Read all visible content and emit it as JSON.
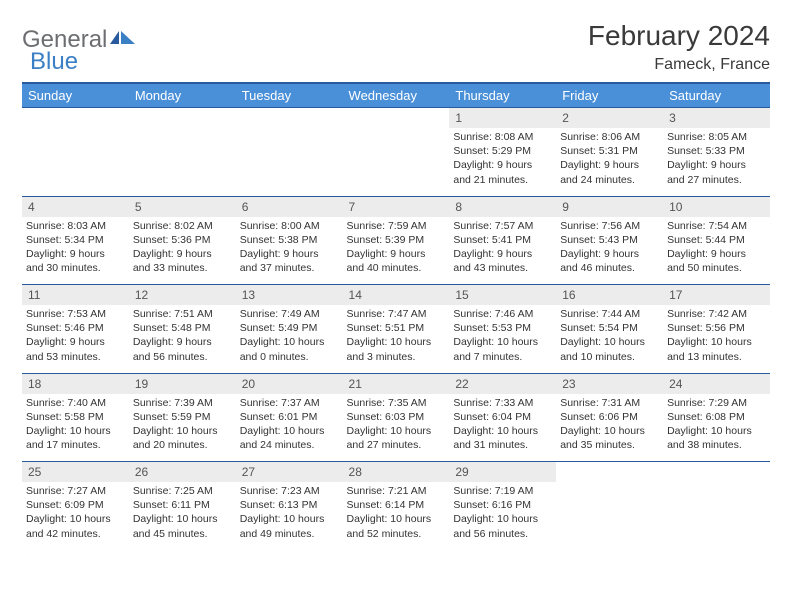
{
  "logo": {
    "text1": "General",
    "text2": "Blue"
  },
  "title": "February 2024",
  "location": "Fameck, France",
  "dayHeaders": [
    "Sunday",
    "Monday",
    "Tuesday",
    "Wednesday",
    "Thursday",
    "Friday",
    "Saturday"
  ],
  "colors": {
    "headerBg": "#4a90d9",
    "headerBorder": "#2a5a9e",
    "dayBg": "#ececec",
    "text": "#333333",
    "titleText": "#3a3a3a",
    "logoGray": "#6d6e71",
    "logoBlue": "#3b7fc4"
  },
  "weeks": [
    [
      null,
      null,
      null,
      null,
      {
        "n": "1",
        "sr": "8:08 AM",
        "ss": "5:29 PM",
        "d": "9 hours and 21 minutes."
      },
      {
        "n": "2",
        "sr": "8:06 AM",
        "ss": "5:31 PM",
        "d": "9 hours and 24 minutes."
      },
      {
        "n": "3",
        "sr": "8:05 AM",
        "ss": "5:33 PM",
        "d": "9 hours and 27 minutes."
      }
    ],
    [
      {
        "n": "4",
        "sr": "8:03 AM",
        "ss": "5:34 PM",
        "d": "9 hours and 30 minutes."
      },
      {
        "n": "5",
        "sr": "8:02 AM",
        "ss": "5:36 PM",
        "d": "9 hours and 33 minutes."
      },
      {
        "n": "6",
        "sr": "8:00 AM",
        "ss": "5:38 PM",
        "d": "9 hours and 37 minutes."
      },
      {
        "n": "7",
        "sr": "7:59 AM",
        "ss": "5:39 PM",
        "d": "9 hours and 40 minutes."
      },
      {
        "n": "8",
        "sr": "7:57 AM",
        "ss": "5:41 PM",
        "d": "9 hours and 43 minutes."
      },
      {
        "n": "9",
        "sr": "7:56 AM",
        "ss": "5:43 PM",
        "d": "9 hours and 46 minutes."
      },
      {
        "n": "10",
        "sr": "7:54 AM",
        "ss": "5:44 PM",
        "d": "9 hours and 50 minutes."
      }
    ],
    [
      {
        "n": "11",
        "sr": "7:53 AM",
        "ss": "5:46 PM",
        "d": "9 hours and 53 minutes."
      },
      {
        "n": "12",
        "sr": "7:51 AM",
        "ss": "5:48 PM",
        "d": "9 hours and 56 minutes."
      },
      {
        "n": "13",
        "sr": "7:49 AM",
        "ss": "5:49 PM",
        "d": "10 hours and 0 minutes."
      },
      {
        "n": "14",
        "sr": "7:47 AM",
        "ss": "5:51 PM",
        "d": "10 hours and 3 minutes."
      },
      {
        "n": "15",
        "sr": "7:46 AM",
        "ss": "5:53 PM",
        "d": "10 hours and 7 minutes."
      },
      {
        "n": "16",
        "sr": "7:44 AM",
        "ss": "5:54 PM",
        "d": "10 hours and 10 minutes."
      },
      {
        "n": "17",
        "sr": "7:42 AM",
        "ss": "5:56 PM",
        "d": "10 hours and 13 minutes."
      }
    ],
    [
      {
        "n": "18",
        "sr": "7:40 AM",
        "ss": "5:58 PM",
        "d": "10 hours and 17 minutes."
      },
      {
        "n": "19",
        "sr": "7:39 AM",
        "ss": "5:59 PM",
        "d": "10 hours and 20 minutes."
      },
      {
        "n": "20",
        "sr": "7:37 AM",
        "ss": "6:01 PM",
        "d": "10 hours and 24 minutes."
      },
      {
        "n": "21",
        "sr": "7:35 AM",
        "ss": "6:03 PM",
        "d": "10 hours and 27 minutes."
      },
      {
        "n": "22",
        "sr": "7:33 AM",
        "ss": "6:04 PM",
        "d": "10 hours and 31 minutes."
      },
      {
        "n": "23",
        "sr": "7:31 AM",
        "ss": "6:06 PM",
        "d": "10 hours and 35 minutes."
      },
      {
        "n": "24",
        "sr": "7:29 AM",
        "ss": "6:08 PM",
        "d": "10 hours and 38 minutes."
      }
    ],
    [
      {
        "n": "25",
        "sr": "7:27 AM",
        "ss": "6:09 PM",
        "d": "10 hours and 42 minutes."
      },
      {
        "n": "26",
        "sr": "7:25 AM",
        "ss": "6:11 PM",
        "d": "10 hours and 45 minutes."
      },
      {
        "n": "27",
        "sr": "7:23 AM",
        "ss": "6:13 PM",
        "d": "10 hours and 49 minutes."
      },
      {
        "n": "28",
        "sr": "7:21 AM",
        "ss": "6:14 PM",
        "d": "10 hours and 52 minutes."
      },
      {
        "n": "29",
        "sr": "7:19 AM",
        "ss": "6:16 PM",
        "d": "10 hours and 56 minutes."
      },
      null,
      null
    ]
  ],
  "labels": {
    "sunrise": "Sunrise: ",
    "sunset": "Sunset: ",
    "daylight": "Daylight: "
  }
}
